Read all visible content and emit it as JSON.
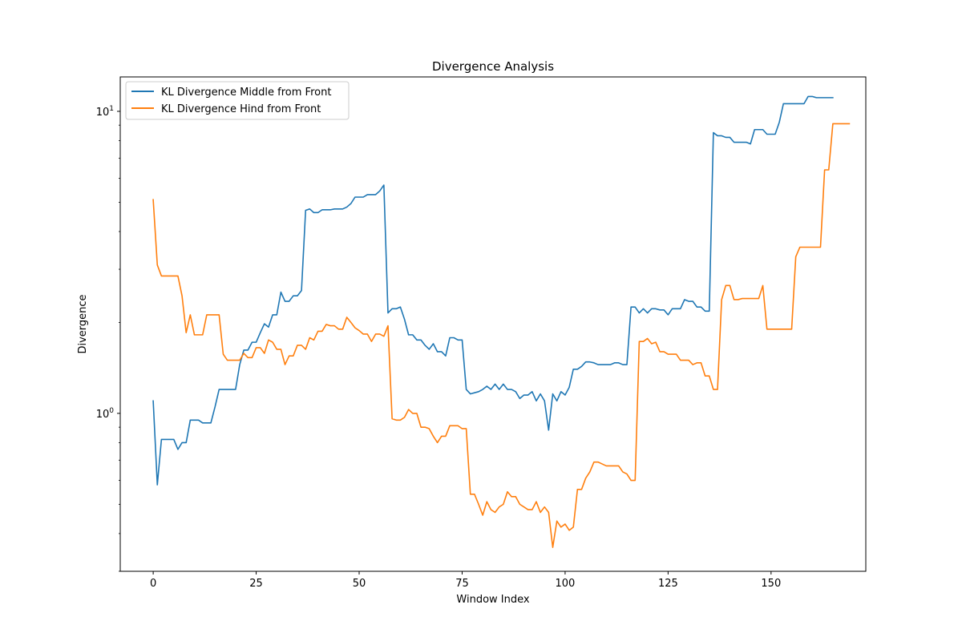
{
  "chart_data": {
    "type": "line",
    "title": "Divergence Analysis",
    "xlabel": "Window Index",
    "ylabel": "Divergence",
    "xlim": [
      -8,
      173
    ],
    "ylim": [
      0.3,
      13
    ],
    "yscale": "log",
    "xticks": [
      0,
      25,
      50,
      75,
      100,
      125,
      150
    ],
    "yticks": [
      {
        "value": 1,
        "label": "10^0"
      },
      {
        "value": 10,
        "label": "10^1"
      }
    ],
    "legend": "top-left",
    "grid": false,
    "series": [
      {
        "name": "KL Divergence Middle from Front",
        "color": "#1f77b4",
        "values": [
          1.1,
          0.58,
          0.82,
          0.82,
          0.82,
          0.82,
          0.76,
          0.8,
          0.8,
          0.95,
          0.95,
          0.95,
          0.93,
          0.93,
          0.93,
          1.05,
          1.2,
          1.2,
          1.2,
          1.2,
          1.2,
          1.45,
          1.62,
          1.62,
          1.72,
          1.72,
          1.85,
          1.98,
          1.93,
          2.12,
          2.12,
          2.52,
          2.35,
          2.35,
          2.45,
          2.45,
          2.55,
          4.7,
          4.75,
          4.62,
          4.62,
          4.72,
          4.72,
          4.72,
          4.75,
          4.75,
          4.75,
          4.82,
          4.95,
          5.2,
          5.2,
          5.2,
          5.3,
          5.3,
          5.3,
          5.45,
          5.7,
          2.15,
          2.22,
          2.22,
          2.25,
          2.05,
          1.82,
          1.82,
          1.75,
          1.75,
          1.68,
          1.63,
          1.7,
          1.6,
          1.6,
          1.55,
          1.78,
          1.78,
          1.75,
          1.75,
          1.2,
          1.16,
          1.17,
          1.18,
          1.2,
          1.23,
          1.2,
          1.25,
          1.2,
          1.25,
          1.2,
          1.2,
          1.18,
          1.12,
          1.15,
          1.15,
          1.18,
          1.1,
          1.16,
          1.1,
          0.88,
          1.16,
          1.1,
          1.18,
          1.15,
          1.22,
          1.4,
          1.4,
          1.43,
          1.48,
          1.48,
          1.47,
          1.45,
          1.45,
          1.45,
          1.45,
          1.47,
          1.47,
          1.45,
          1.45,
          2.25,
          2.25,
          2.15,
          2.22,
          2.15,
          2.22,
          2.22,
          2.2,
          2.2,
          2.12,
          2.22,
          2.22,
          2.22,
          2.38,
          2.35,
          2.35,
          2.25,
          2.25,
          2.18,
          2.18,
          8.5,
          8.3,
          8.3,
          8.2,
          8.2,
          7.9,
          7.9,
          7.9,
          7.9,
          7.8,
          8.7,
          8.7,
          8.7,
          8.4,
          8.4,
          8.4,
          9.2,
          10.6,
          10.6,
          10.6,
          10.6,
          10.6,
          10.6,
          11.2,
          11.2,
          11.1,
          11.1,
          11.1,
          11.1,
          11.1
        ]
      },
      {
        "name": "KL Divergence Hind from Front",
        "color": "#ff7f0e",
        "values": [
          5.1,
          3.1,
          2.85,
          2.85,
          2.85,
          2.85,
          2.85,
          2.45,
          1.85,
          2.12,
          1.82,
          1.82,
          1.82,
          2.12,
          2.12,
          2.12,
          2.12,
          1.57,
          1.5,
          1.5,
          1.5,
          1.5,
          1.58,
          1.53,
          1.53,
          1.65,
          1.65,
          1.58,
          1.75,
          1.72,
          1.63,
          1.63,
          1.45,
          1.55,
          1.55,
          1.68,
          1.68,
          1.63,
          1.78,
          1.75,
          1.87,
          1.87,
          1.97,
          1.95,
          1.95,
          1.9,
          1.9,
          2.08,
          2.0,
          1.92,
          1.88,
          1.83,
          1.83,
          1.73,
          1.83,
          1.83,
          1.8,
          1.95,
          0.96,
          0.95,
          0.95,
          0.97,
          1.03,
          1.0,
          1.0,
          0.9,
          0.9,
          0.89,
          0.84,
          0.8,
          0.84,
          0.84,
          0.91,
          0.91,
          0.91,
          0.89,
          0.89,
          0.54,
          0.54,
          0.5,
          0.46,
          0.51,
          0.48,
          0.47,
          0.49,
          0.5,
          0.55,
          0.53,
          0.53,
          0.5,
          0.49,
          0.48,
          0.48,
          0.51,
          0.47,
          0.49,
          0.47,
          0.36,
          0.44,
          0.42,
          0.43,
          0.41,
          0.42,
          0.56,
          0.56,
          0.61,
          0.64,
          0.69,
          0.69,
          0.68,
          0.67,
          0.67,
          0.67,
          0.67,
          0.64,
          0.63,
          0.6,
          0.6,
          1.73,
          1.73,
          1.77,
          1.7,
          1.72,
          1.6,
          1.6,
          1.57,
          1.57,
          1.57,
          1.5,
          1.5,
          1.5,
          1.45,
          1.47,
          1.47,
          1.33,
          1.33,
          1.2,
          1.2,
          2.38,
          2.65,
          2.65,
          2.38,
          2.38,
          2.4,
          2.4,
          2.4,
          2.4,
          2.4,
          2.65,
          1.9,
          1.9,
          1.9,
          1.9,
          1.9,
          1.9,
          1.9,
          3.3,
          3.55,
          3.55,
          3.55,
          3.55,
          3.55,
          3.55,
          6.4,
          6.4,
          9.1,
          9.1,
          9.1,
          9.1,
          9.1
        ]
      }
    ]
  }
}
